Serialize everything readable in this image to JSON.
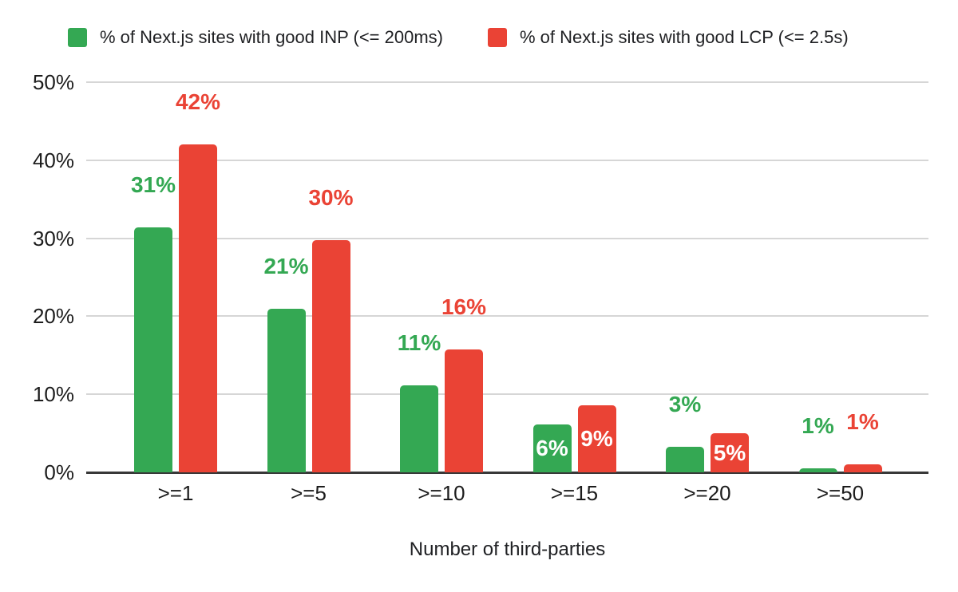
{
  "legend": {
    "items": [
      {
        "name": "inp",
        "label": "% of Next.js sites with good INP (<= 200ms)",
        "color": "#34a853"
      },
      {
        "name": "lcp",
        "label": "% of Next.js sites with good LCP (<= 2.5s)",
        "color": "#ea4335"
      }
    ]
  },
  "chart_data": {
    "type": "bar",
    "categories": [
      ">=1",
      ">=5",
      ">=10",
      ">=15",
      ">=20",
      ">=50"
    ],
    "series": [
      {
        "name": "% of Next.js sites with good INP (<= 200ms)",
        "color": "#34a853",
        "values": [
          31,
          21,
          11,
          6,
          3,
          1
        ],
        "labels": [
          "31%",
          "21%",
          "11%",
          "6%",
          "3%",
          "1%"
        ],
        "bar_heights_pct": [
          31.4,
          21.0,
          11.1,
          6.1,
          3.3,
          0.5
        ],
        "label_placement": [
          "above",
          "above",
          "above",
          "inside",
          "above",
          "above"
        ]
      },
      {
        "name": "% of Next.js sites with good LCP (<= 2.5s)",
        "color": "#ea4335",
        "values": [
          42,
          30,
          16,
          9,
          5,
          1
        ],
        "labels": [
          "42%",
          "30%",
          "16%",
          "9%",
          "5%",
          "1%"
        ],
        "bar_heights_pct": [
          42.0,
          29.8,
          15.7,
          8.6,
          5.0,
          1.0
        ],
        "label_placement": [
          "above",
          "above",
          "above",
          "inside",
          "inside",
          "above"
        ]
      }
    ],
    "title": "",
    "xlabel": "Number of third-parties",
    "ylabel": "",
    "ylim": [
      0,
      50
    ],
    "yticks": [
      "0%",
      "10%",
      "20%",
      "30%",
      "40%",
      "50%"
    ],
    "grid": true,
    "legend_position": "top"
  },
  "colors": {
    "series_inp": "#34a853",
    "series_lcp": "#ea4335",
    "gridline": "#d6d6d6",
    "axis_line": "#383838",
    "tick_text": "#1c1c1c",
    "inside_label_text": "#ffffff",
    "background": "#ffffff"
  }
}
